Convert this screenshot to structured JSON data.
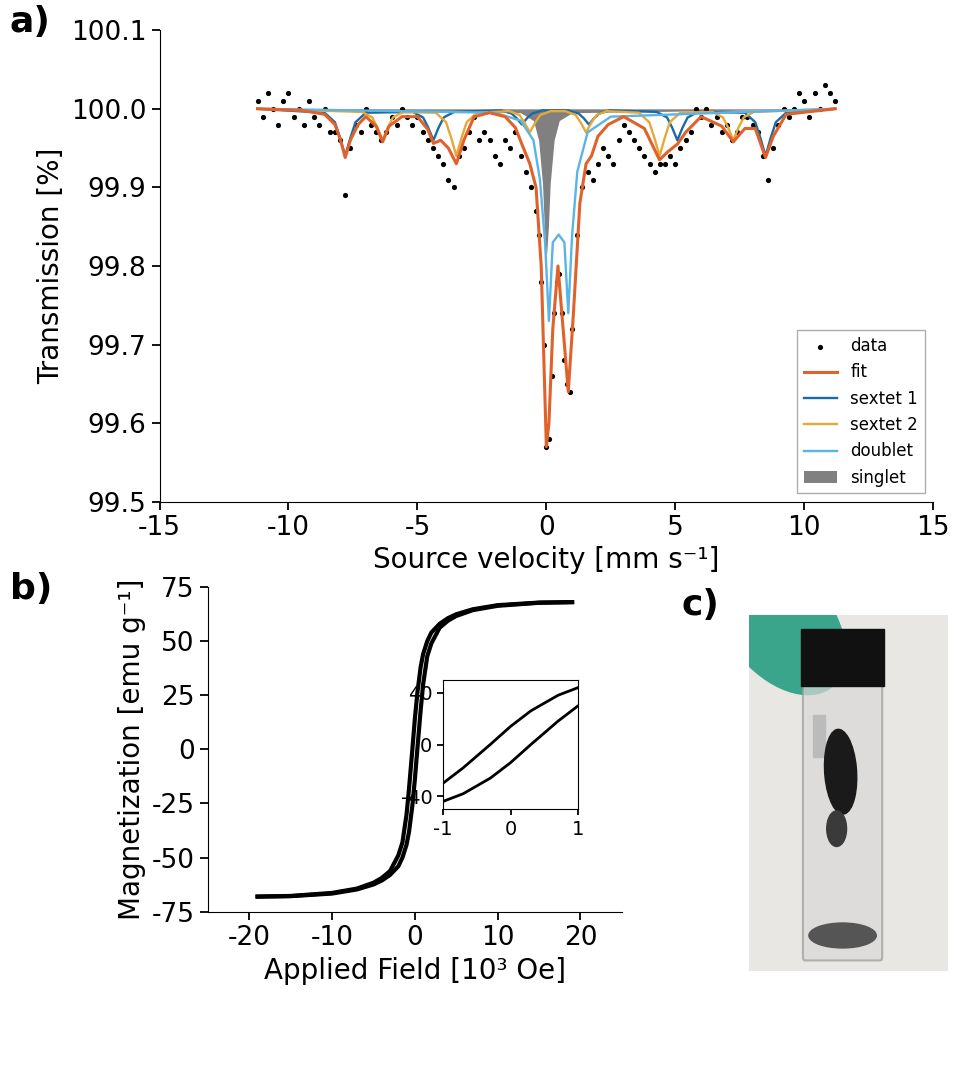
{
  "chart_data": [
    {
      "type": "line",
      "panel_label": "a)",
      "x_label": "Source velocity [mm s⁻¹]",
      "y_label": "Transmission [%]",
      "xlim": [
        -15,
        15
      ],
      "xticks": [
        -15,
        -10,
        -5,
        0,
        5,
        10,
        15
      ],
      "ylim": [
        99.5,
        100.1
      ],
      "yticks": [
        99.5,
        99.6,
        99.7,
        99.8,
        99.9,
        {
          "value": 100.0,
          "label": "100.0"
        },
        100.1
      ],
      "legend": "lower right",
      "series": [
        {
          "name": "data",
          "type": "scatter",
          "marker": "o",
          "color": "#000000",
          "x": [
            -11.2,
            -11.0,
            -10.8,
            -10.6,
            -10.4,
            -10.2,
            -10.0,
            -9.8,
            -9.6,
            -9.4,
            -9.2,
            -9.0,
            -8.8,
            -8.6,
            -8.4,
            -8.2,
            -8.0,
            -7.8,
            -7.6,
            -7.4,
            -7.2,
            -7.0,
            -6.8,
            -6.6,
            -6.4,
            -6.2,
            -6.0,
            -5.8,
            -5.6,
            -5.4,
            -5.2,
            -5.0,
            -4.8,
            -4.6,
            -4.4,
            -4.2,
            -4.0,
            -3.8,
            -3.6,
            -3.4,
            -3.2,
            -3.0,
            -2.8,
            -2.6,
            -2.4,
            -2.2,
            -2.0,
            -1.8,
            -1.6,
            -1.4,
            -1.2,
            -1.0,
            -0.8,
            -0.6,
            -0.4,
            -0.3,
            -0.2,
            -0.1,
            0.0,
            0.1,
            0.2,
            0.3,
            0.4,
            0.5,
            0.6,
            0.7,
            0.8,
            0.9,
            1.0,
            1.2,
            1.4,
            1.6,
            1.8,
            2.0,
            2.2,
            2.4,
            2.6,
            2.8,
            3.0,
            3.2,
            3.4,
            3.6,
            3.8,
            4.0,
            4.2,
            4.4,
            4.6,
            4.8,
            5.0,
            5.2,
            5.4,
            5.6,
            5.8,
            6.0,
            6.2,
            6.4,
            6.6,
            6.8,
            7.0,
            7.2,
            7.4,
            7.6,
            7.8,
            8.0,
            8.2,
            8.4,
            8.6,
            8.8,
            9.0,
            9.2,
            9.4,
            9.6,
            9.8,
            10.0,
            10.2,
            10.4,
            10.6,
            10.8,
            11.0,
            11.2
          ],
          "values": [
            100.01,
            99.99,
            100.02,
            100.0,
            99.98,
            100.01,
            100.02,
            99.99,
            100.0,
            99.98,
            100.01,
            99.99,
            99.98,
            100.0,
            99.97,
            99.97,
            99.96,
            99.89,
            99.95,
            99.98,
            99.97,
            100.0,
            99.98,
            99.97,
            99.96,
            99.97,
            99.99,
            99.98,
            100.0,
            99.99,
            99.98,
            99.99,
            99.97,
            99.96,
            99.95,
            99.94,
            99.93,
            99.91,
            99.9,
            99.94,
            99.95,
            99.97,
            99.99,
            99.96,
            99.97,
            99.96,
            99.94,
            99.93,
            99.96,
            99.95,
            99.97,
            99.94,
            99.92,
            99.9,
            99.87,
            99.84,
            99.78,
            99.7,
            99.57,
            99.58,
            99.66,
            99.74,
            99.78,
            99.79,
            99.74,
            99.68,
            99.65,
            99.64,
            99.72,
            99.84,
            99.9,
            99.92,
            99.91,
            99.93,
            99.95,
            99.94,
            99.93,
            99.96,
            99.98,
            99.97,
            99.96,
            99.95,
            99.94,
            99.93,
            99.92,
            99.93,
            99.93,
            99.94,
            99.93,
            99.95,
            99.96,
            99.97,
            100.0,
            99.99,
            100.0,
            99.98,
            99.99,
            99.97,
            99.98,
            99.96,
            99.97,
            99.99,
            99.99,
            99.98,
            99.97,
            99.94,
            99.91,
            99.95,
            99.98,
            100.0,
            99.99,
            100.0,
            100.02,
            100.01,
            99.99,
            100.02,
            100.0,
            100.03,
            100.02,
            100.01
          ]
        },
        {
          "name": "fit",
          "type": "line",
          "color": "#e0622a",
          "x": [
            -11.2,
            -9.5,
            -8.6,
            -8.2,
            -8.0,
            -7.8,
            -7.6,
            -7.3,
            -7.0,
            -6.6,
            -6.35,
            -6.1,
            -5.6,
            -5.0,
            -4.6,
            -4.38,
            -4.1,
            -3.8,
            -3.49,
            -3.2,
            -2.8,
            -2.2,
            -1.6,
            -1.2,
            -0.95,
            -0.64,
            -0.4,
            -0.2,
            0.0,
            0.1,
            0.25,
            0.45,
            0.65,
            0.85,
            1.05,
            1.3,
            1.54,
            1.75,
            2.0,
            2.4,
            3.0,
            3.8,
            4.39,
            4.7,
            5.08,
            5.4,
            6.0,
            6.8,
            7.25,
            7.7,
            8.1,
            8.5,
            8.8,
            9.3,
            11.2
          ],
          "values": [
            100.0,
            99.998,
            99.993,
            99.98,
            99.962,
            99.938,
            99.96,
            99.98,
            99.99,
            99.978,
            99.958,
            99.978,
            99.99,
            99.99,
            99.974,
            99.956,
            99.96,
            99.95,
            99.93,
            99.96,
            99.99,
            99.995,
            99.99,
            99.976,
            99.955,
            99.93,
            99.9,
            99.8,
            99.57,
            99.6,
            99.72,
            99.8,
            99.72,
            99.64,
            99.74,
            99.88,
            99.93,
            99.94,
            99.965,
            99.98,
            99.99,
            99.975,
            99.935,
            99.945,
            99.955,
            99.97,
            99.99,
            99.978,
            99.958,
            99.975,
            99.975,
            99.938,
            99.965,
            99.993,
            100.0
          ]
        },
        {
          "name": "sextet 1",
          "type": "line",
          "color": "#1b6aa5",
          "x": [
            -11.2,
            -8.6,
            -8.2,
            -8.0,
            -7.8,
            -7.6,
            -7.4,
            -7.0,
            -5.18,
            -4.78,
            -4.58,
            -4.38,
            -4.18,
            -3.98,
            -3.58,
            -1.75,
            -1.35,
            -1.15,
            -0.95,
            -0.75,
            -0.55,
            -0.15,
            0.85,
            1.25,
            1.45,
            1.65,
            1.85,
            2.05,
            2.45,
            4.28,
            4.68,
            4.88,
            5.08,
            5.28,
            5.48,
            5.88,
            7.7,
            8.1,
            8.3,
            8.5,
            8.7,
            8.9,
            9.3,
            11.2
          ],
          "values": [
            100.0,
            99.995,
            99.983,
            99.963,
            99.94,
            99.963,
            99.983,
            99.995,
            99.996,
            99.989,
            99.976,
            99.96,
            99.976,
            99.989,
            99.996,
            99.998,
            99.994,
            99.988,
            99.98,
            99.988,
            99.994,
            99.998,
            99.998,
            99.994,
            99.988,
            99.98,
            99.988,
            99.994,
            99.998,
            99.996,
            99.989,
            99.976,
            99.96,
            99.976,
            99.989,
            99.996,
            99.995,
            99.983,
            99.963,
            99.94,
            99.963,
            99.983,
            99.995,
            100.0
          ]
        },
        {
          "name": "sextet 2",
          "type": "line",
          "color": "#e8a838",
          "x": [
            -11.2,
            -7.15,
            -6.75,
            -6.55,
            -6.35,
            -6.15,
            -5.95,
            -5.55,
            -4.29,
            -3.89,
            -3.69,
            -3.49,
            -3.29,
            -3.09,
            -2.69,
            -1.44,
            -1.04,
            -0.84,
            -0.64,
            -0.44,
            -0.24,
            0.16,
            0.74,
            1.14,
            1.34,
            1.54,
            1.74,
            1.94,
            2.34,
            3.59,
            3.99,
            4.19,
            4.39,
            4.59,
            4.79,
            5.19,
            6.45,
            6.85,
            7.05,
            7.25,
            7.45,
            7.65,
            8.05,
            11.2
          ],
          "values": [
            100.0,
            99.996,
            99.989,
            99.976,
            99.96,
            99.976,
            99.989,
            99.996,
            99.995,
            99.983,
            99.963,
            99.94,
            99.963,
            99.983,
            99.995,
            99.997,
            99.992,
            99.982,
            99.97,
            99.982,
            99.992,
            99.997,
            99.997,
            99.992,
            99.982,
            99.97,
            99.982,
            99.992,
            99.997,
            99.995,
            99.983,
            99.963,
            99.94,
            99.963,
            99.983,
            99.995,
            99.996,
            99.989,
            99.976,
            99.96,
            99.976,
            99.989,
            99.996,
            100.0
          ]
        },
        {
          "name": "doublet",
          "type": "line",
          "color": "#5ab4e5",
          "x": [
            -11.2,
            -2.0,
            -1.0,
            -0.5,
            -0.25,
            -0.05,
            0.1,
            0.25,
            0.475,
            0.7,
            0.85,
            1.0,
            1.2,
            1.6,
            2.5,
            11.2
          ],
          "values": [
            100.0,
            99.995,
            99.985,
            99.96,
            99.91,
            99.83,
            99.73,
            99.83,
            99.84,
            99.83,
            99.74,
            99.84,
            99.92,
            99.97,
            99.99,
            100.0
          ]
        },
        {
          "name": "singlet",
          "type": "area",
          "color": "#808080",
          "baseline": 100.0,
          "x": [
            -11.2,
            -1.0,
            -0.5,
            -0.3,
            -0.15,
            -0.08,
            0.0,
            0.08,
            0.15,
            0.3,
            0.5,
            1.0,
            11.2
          ],
          "values": [
            100.0,
            99.995,
            99.985,
            99.96,
            99.905,
            99.85,
            99.81,
            99.85,
            99.905,
            99.96,
            99.985,
            99.995,
            100.0
          ]
        }
      ]
    },
    {
      "type": "line",
      "panel_label": "b)",
      "x_label": "Applied Field [10³ Oe]",
      "y_label": "Magnetization [emu g⁻¹]",
      "xlim": [
        -25,
        25
      ],
      "xticks": [
        -20,
        -10,
        0,
        10,
        20
      ],
      "ylim": [
        -75,
        75
      ],
      "yticks": [
        -75,
        -50,
        -25,
        0,
        25,
        50,
        75
      ],
      "series": [
        {
          "color": "#000000",
          "x": [
            -19,
            -15,
            -10,
            -7,
            -5,
            -4,
            -3,
            -2,
            -1.5,
            -1,
            -0.7,
            -0.3,
            0,
            0.3,
            0.7,
            1,
            1.5,
            2,
            3,
            4,
            5,
            7,
            10,
            15,
            19
          ],
          "values": [
            -68.0,
            -67.7,
            -66.3,
            -64.3,
            -61.6,
            -59.4,
            -56.2,
            -49.0,
            -43.0,
            -30.0,
            -18.0,
            0.0,
            14.0,
            26.0,
            38.0,
            44.0,
            50.0,
            54.0,
            58.0,
            60.6,
            62.4,
            64.7,
            66.6,
            67.8,
            68.0
          ]
        },
        {
          "color": "#000000",
          "x": [
            -19,
            -15,
            -10,
            -7,
            -5,
            -4,
            -3,
            -2,
            -1.5,
            -1,
            -0.7,
            -0.3,
            0,
            0.3,
            0.7,
            1,
            1.5,
            2,
            3,
            4,
            5,
            7,
            10,
            15,
            19
          ],
          "values": [
            -68.0,
            -67.8,
            -66.6,
            -64.7,
            -62.4,
            -60.6,
            -58.0,
            -54.0,
            -50.0,
            -44.0,
            -38.0,
            -26.0,
            -14.0,
            0.0,
            18.0,
            30.0,
            43.0,
            49.0,
            56.2,
            59.4,
            61.6,
            64.3,
            66.3,
            67.7,
            68.0
          ]
        }
      ],
      "inset": {
        "xlim": [
          -1,
          1
        ],
        "xticks": [
          -1,
          0,
          1
        ],
        "ylim": [
          -50,
          50
        ],
        "yticks": [
          -40,
          0,
          40
        ]
      }
    }
  ],
  "photo": {
    "panel_label": "c)"
  }
}
